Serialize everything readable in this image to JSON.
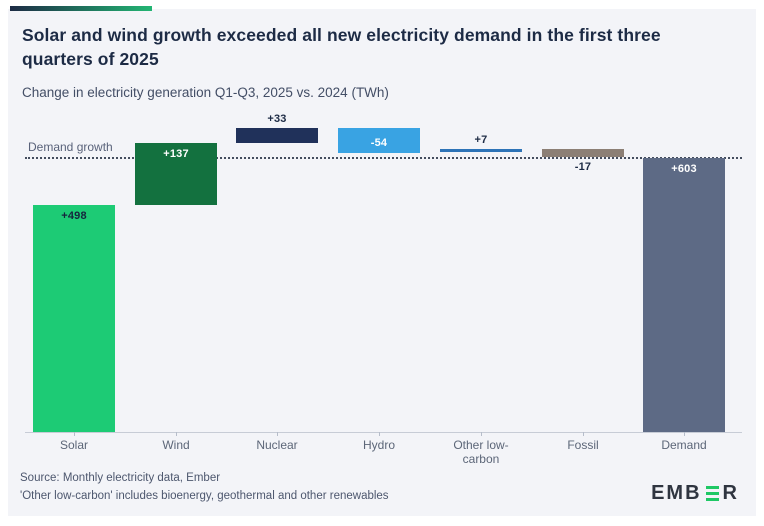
{
  "header": {
    "title": "Solar and wind growth exceeded all new electricity demand in the first three quarters of 2025",
    "subtitle": "Change in electricity generation Q1-Q3, 2025 vs. 2024 (TWh)"
  },
  "chart_data": {
    "type": "bar",
    "subtype": "waterfall",
    "categories": [
      "Solar",
      "Wind",
      "Nuclear",
      "Hydro",
      "Other low-carbon",
      "Fossil",
      "Demand"
    ],
    "values": [
      498,
      137,
      33,
      -54,
      7,
      -17,
      603
    ],
    "value_labels": [
      "+498",
      "+137",
      "+33",
      "-54",
      "+7",
      "-17",
      "+603"
    ],
    "total_flags": [
      false,
      false,
      false,
      false,
      false,
      false,
      true
    ],
    "bar_colors": [
      "#1dcb75",
      "#13713f",
      "#20315a",
      "#39a3e3",
      "#2d73b7",
      "#8c7f75",
      "#5d6a85"
    ],
    "label_text_colors": [
      "#16243d",
      "#ffffff",
      "#1d2b45",
      "#ffffff",
      "#1d2b45",
      "#1d2b45",
      "#ffffff"
    ],
    "title": "Solar and wind growth exceeded all new electricity demand in the first three quarters of 2025",
    "xlabel": "",
    "ylabel": "TWh",
    "ylim": [
      0,
      703
    ],
    "grid": false,
    "reference_line": {
      "label": "Demand growth",
      "value": 603,
      "color": "#444d5e",
      "style": "dotted"
    }
  },
  "footer": {
    "source_line": "Source: Monthly electricity data, Ember",
    "note_line": "'Other low-carbon' includes bioenergy, geothermal and other renewables",
    "logo_left": "EMB",
    "logo_right": "R"
  },
  "colors": {
    "card_background": "#f3f4f8",
    "accent_gradient_start": "#1d2b45",
    "accent_gradient_end": "#22b573",
    "logo_green": "#1fc865",
    "title_text": "#1d2b45"
  }
}
